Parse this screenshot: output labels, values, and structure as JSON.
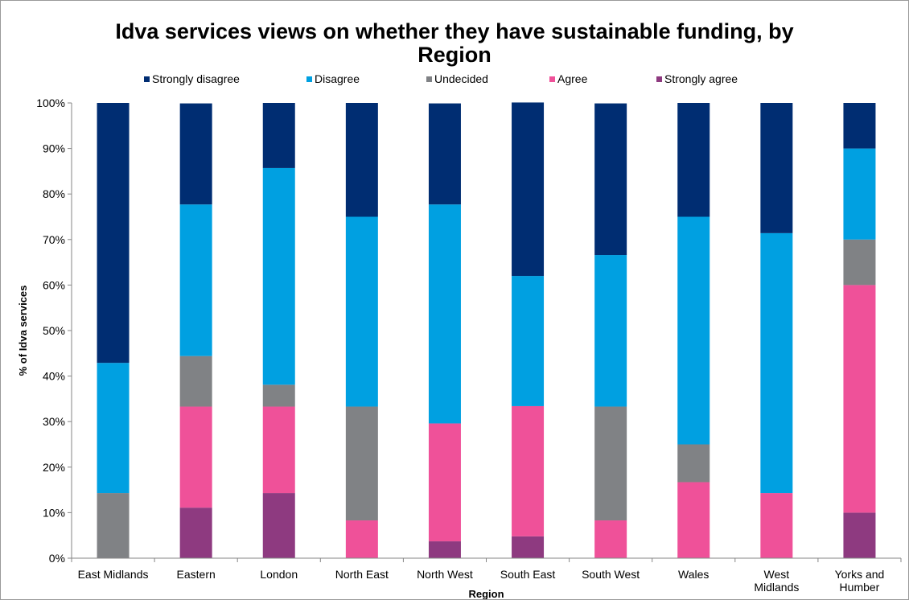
{
  "chart_data": {
    "type": "bar",
    "stacked": true,
    "title": [
      "Idva services views on whether they have sustainable funding, by",
      "Region"
    ],
    "xlabel": "Region",
    "ylabel": "% of Idva services",
    "ylim": [
      0,
      100
    ],
    "yticks": [
      "0%",
      "10%",
      "20%",
      "30%",
      "40%",
      "50%",
      "60%",
      "70%",
      "80%",
      "90%",
      "100%"
    ],
    "grid": false,
    "legend_position": "top",
    "categories": [
      [
        "East Midlands"
      ],
      [
        "Eastern"
      ],
      [
        "London"
      ],
      [
        "North East"
      ],
      [
        "North West"
      ],
      [
        "South East"
      ],
      [
        "South West"
      ],
      [
        "Wales"
      ],
      [
        "West",
        "Midlands"
      ],
      [
        "Yorks and",
        "Humber"
      ]
    ],
    "series": [
      {
        "name": "Strongly agree",
        "color": "#8e3a80",
        "values": [
          0,
          11.1,
          14.3,
          0,
          3.7,
          4.8,
          0,
          0,
          0,
          10
        ]
      },
      {
        "name": "Agree",
        "color": "#ef5199",
        "values": [
          0,
          22.2,
          19.0,
          8.3,
          25.9,
          28.6,
          8.3,
          16.7,
          14.3,
          50
        ]
      },
      {
        "name": "Undecided",
        "color": "#808285",
        "values": [
          14.3,
          11.1,
          4.8,
          25.0,
          0,
          0,
          25.0,
          8.3,
          0,
          10
        ]
      },
      {
        "name": "Disagree",
        "color": "#00a0e1",
        "values": [
          28.6,
          33.3,
          47.6,
          41.7,
          48.1,
          28.6,
          33.3,
          50.0,
          57.1,
          20
        ]
      },
      {
        "name": "Strongly disagree",
        "color": "#002d72",
        "values": [
          57.1,
          22.2,
          14.3,
          25.0,
          22.2,
          38.1,
          33.3,
          25.0,
          28.6,
          10
        ]
      }
    ],
    "legend_order": [
      "Strongly disagree",
      "Disagree",
      "Undecided",
      "Agree",
      "Strongly agree"
    ]
  }
}
